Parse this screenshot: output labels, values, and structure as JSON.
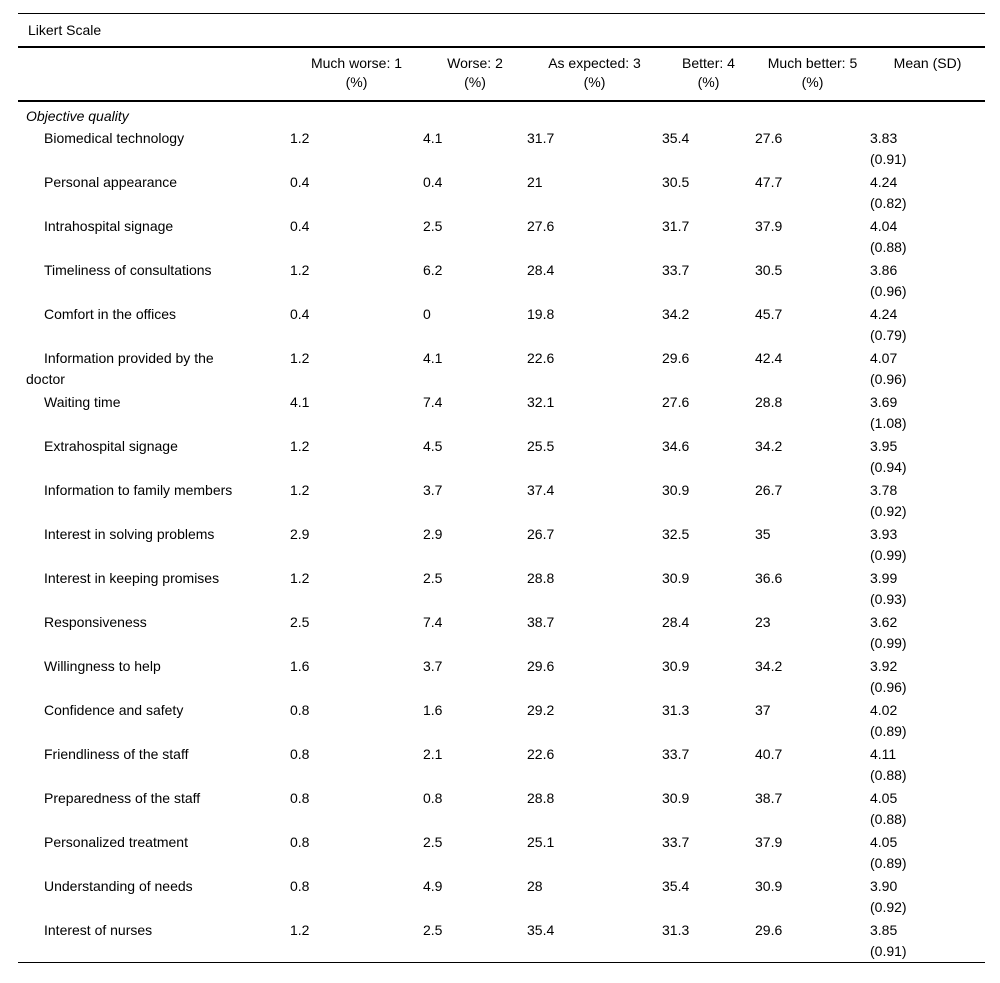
{
  "table": {
    "caption": "Likert Scale",
    "columns": [
      {
        "label": "",
        "sub": ""
      },
      {
        "label": "Much worse: 1",
        "sub": "(%)"
      },
      {
        "label": "Worse: 2",
        "sub": "(%)"
      },
      {
        "label": "As expected: 3",
        "sub": "(%)"
      },
      {
        "label": "Better: 4",
        "sub": "(%)"
      },
      {
        "label": "Much better: 5",
        "sub": "(%)"
      },
      {
        "label": "Mean (SD)",
        "sub": ""
      }
    ],
    "section": "Objective quality",
    "rows": [
      {
        "label": "Biomedical technology",
        "values": [
          "1.2",
          "4.1",
          "31.7",
          "35.4",
          "27.6"
        ],
        "mean": "3.83",
        "sd": "(0.91)"
      },
      {
        "label": "Personal appearance",
        "values": [
          "0.4",
          "0.4",
          "21",
          "30.5",
          "47.7"
        ],
        "mean": "4.24",
        "sd": "(0.82)"
      },
      {
        "label": "Intrahospital signage",
        "values": [
          "0.4",
          "2.5",
          "27.6",
          "31.7",
          "37.9"
        ],
        "mean": "4.04",
        "sd": "(0.88)"
      },
      {
        "label": "Timeliness of consultations",
        "values": [
          "1.2",
          "6.2",
          "28.4",
          "33.7",
          "30.5"
        ],
        "mean": "3.86",
        "sd": "(0.96)"
      },
      {
        "label": "Comfort in the offices",
        "values": [
          "0.4",
          "0",
          "19.8",
          "34.2",
          "45.7"
        ],
        "mean": "4.24",
        "sd": "(0.79)"
      },
      {
        "label": "Information provided by the doctor",
        "values": [
          "1.2",
          "4.1",
          "22.6",
          "29.6",
          "42.4"
        ],
        "mean": "4.07",
        "sd": "(0.96)"
      },
      {
        "label": "Waiting time",
        "values": [
          "4.1",
          "7.4",
          "32.1",
          "27.6",
          "28.8"
        ],
        "mean": "3.69",
        "sd": "(1.08)"
      },
      {
        "label": "Extrahospital signage",
        "values": [
          "1.2",
          "4.5",
          "25.5",
          "34.6",
          "34.2"
        ],
        "mean": "3.95",
        "sd": "(0.94)"
      },
      {
        "label": "Information to family members",
        "values": [
          "1.2",
          "3.7",
          "37.4",
          "30.9",
          "26.7"
        ],
        "mean": "3.78",
        "sd": "(0.92)"
      },
      {
        "label": "Interest in solving problems",
        "values": [
          "2.9",
          "2.9",
          "26.7",
          "32.5",
          "35"
        ],
        "mean": "3.93",
        "sd": "(0.99)"
      },
      {
        "label": "Interest in keeping promises",
        "values": [
          "1.2",
          "2.5",
          "28.8",
          "30.9",
          "36.6"
        ],
        "mean": "3.99",
        "sd": "(0.93)"
      },
      {
        "label": "Responsiveness",
        "values": [
          "2.5",
          "7.4",
          "38.7",
          "28.4",
          "23"
        ],
        "mean": "3.62",
        "sd": "(0.99)"
      },
      {
        "label": "Willingness to help",
        "values": [
          "1.6",
          "3.7",
          "29.6",
          "30.9",
          "34.2"
        ],
        "mean": "3.92",
        "sd": "(0.96)"
      },
      {
        "label": "Confidence and safety",
        "values": [
          "0.8",
          "1.6",
          "29.2",
          "31.3",
          "37"
        ],
        "mean": "4.02",
        "sd": "(0.89)"
      },
      {
        "label": "Friendliness of the staff",
        "values": [
          "0.8",
          "2.1",
          "22.6",
          "33.7",
          "40.7"
        ],
        "mean": "4.11",
        "sd": "(0.88)"
      },
      {
        "label": "Preparedness of the staff",
        "values": [
          "0.8",
          "0.8",
          "28.8",
          "30.9",
          "38.7"
        ],
        "mean": "4.05",
        "sd": "(0.88)"
      },
      {
        "label": "Personalized treatment",
        "values": [
          "0.8",
          "2.5",
          "25.1",
          "33.7",
          "37.9"
        ],
        "mean": "4.05",
        "sd": "(0.89)"
      },
      {
        "label": "Understanding of needs",
        "values": [
          "0.8",
          "4.9",
          "28",
          "35.4",
          "30.9"
        ],
        "mean": "3.90",
        "sd": "(0.92)"
      },
      {
        "label": "Interest of nurses",
        "values": [
          "1.2",
          "2.5",
          "35.4",
          "31.3",
          "29.6"
        ],
        "mean": "3.85",
        "sd": "(0.91)"
      }
    ]
  }
}
